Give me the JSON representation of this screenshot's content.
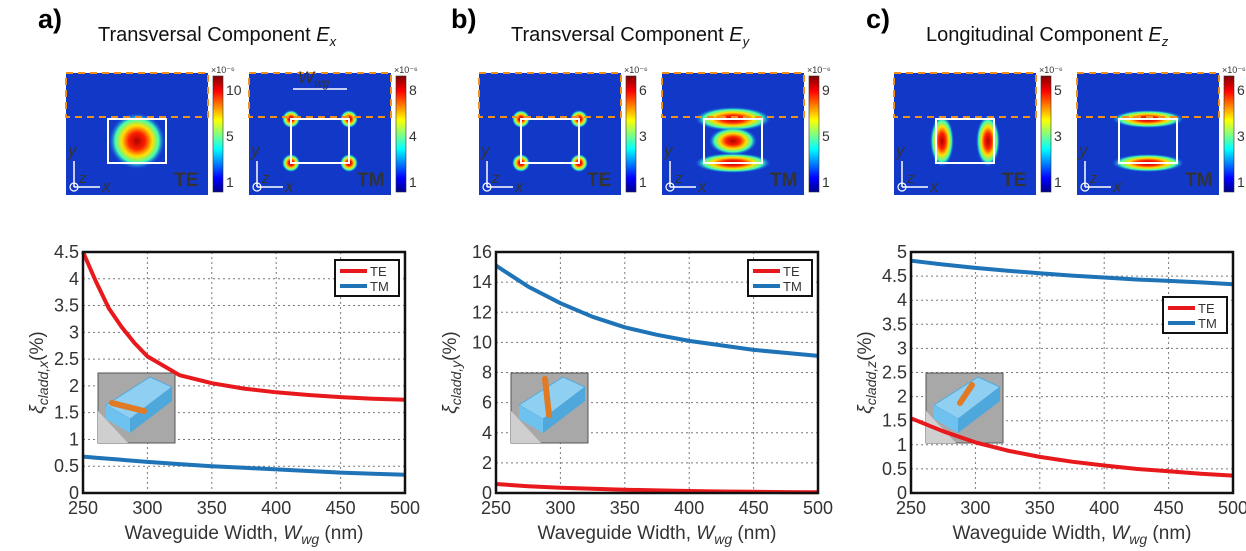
{
  "figure": {
    "panels": [
      {
        "letter": "a)",
        "title_prefix": "Transversal Component ",
        "title_var": "E",
        "title_sub": "x",
        "field_maps": [
          {
            "mode": "TE",
            "colorbar_exp": "×10⁻⁶",
            "ticks": [
              "10",
              "5",
              "1"
            ],
            "pattern": "center"
          },
          {
            "mode": "TM",
            "colorbar_exp": "×10⁻⁶",
            "ticks": [
              "8",
              "4",
              "1"
            ],
            "pattern": "corners",
            "width_label": "W",
            "width_sub": "wg"
          }
        ],
        "axis_labels": {
          "y": "y",
          "z": "z",
          "x": "x"
        }
      },
      {
        "letter": "b)",
        "title_prefix": "Transversal Component ",
        "title_var": "E",
        "title_sub": "y",
        "field_maps": [
          {
            "mode": "TE",
            "colorbar_exp": "×10⁻⁶",
            "ticks": [
              "6",
              "3",
              "1"
            ],
            "pattern": "corners"
          },
          {
            "mode": "TM",
            "colorbar_exp": "×10⁻⁶",
            "ticks": [
              "9",
              "5",
              "1"
            ],
            "pattern": "center-lobes"
          }
        ],
        "axis_labels": {
          "y": "y",
          "z": "z",
          "x": "x"
        }
      },
      {
        "letter": "c)",
        "title_prefix": "Longitudinal Component ",
        "title_var": "E",
        "title_sub": "z",
        "field_maps": [
          {
            "mode": "TE",
            "colorbar_exp": "×10⁻⁶",
            "ticks": [
              "5",
              "3",
              "1"
            ],
            "pattern": "side-lobes"
          },
          {
            "mode": "TM",
            "colorbar_exp": "×10⁻⁶",
            "ticks": [
              "6",
              "3",
              "1"
            ],
            "pattern": "top-bottom-lobes"
          }
        ],
        "axis_labels": {
          "y": "y",
          "z": "z",
          "x": "x"
        }
      }
    ]
  },
  "chart_data": [
    {
      "type": "line",
      "xlabel": "Waveguide Width, W",
      "xlabel_sub": "wg",
      "xlabel_unit": " (nm)",
      "ylabel_sym": "ξ",
      "ylabel_sub": "cladd,x",
      "ylabel_unit": "(%)",
      "xlim": [
        250,
        500
      ],
      "ylim": [
        0,
        4.5
      ],
      "xticks": [
        250,
        300,
        350,
        400,
        450,
        500
      ],
      "yticks": [
        0,
        0.5,
        1,
        1.5,
        2,
        2.5,
        3,
        3.5,
        4,
        4.5
      ],
      "ytick_labels": [
        "0",
        "0.5",
        "1",
        "1.5",
        "2",
        "2.5",
        "3",
        "3.5",
        "4",
        "4.5"
      ],
      "grid": true,
      "legend_placement": "top-right",
      "x": [
        250,
        260,
        270,
        280,
        290,
        300,
        325,
        350,
        375,
        400,
        425,
        450,
        475,
        500
      ],
      "series": [
        {
          "name": "TE",
          "color": "#e8191c",
          "values": [
            4.5,
            3.95,
            3.45,
            3.1,
            2.8,
            2.55,
            2.2,
            2.05,
            1.95,
            1.88,
            1.83,
            1.79,
            1.76,
            1.74
          ]
        },
        {
          "name": "TM",
          "color": "#1f73b7",
          "values": [
            0.68,
            0.66,
            0.64,
            0.62,
            0.6,
            0.58,
            0.54,
            0.5,
            0.47,
            0.44,
            0.41,
            0.38,
            0.36,
            0.34
          ]
        }
      ],
      "inset": "rod-horizontal"
    },
    {
      "type": "line",
      "xlabel": "Waveguide Width, W",
      "xlabel_sub": "wg",
      "xlabel_unit": " (nm)",
      "ylabel_sym": "ξ",
      "ylabel_sub": "cladd,y",
      "ylabel_unit": "(%)",
      "xlim": [
        250,
        500
      ],
      "ylim": [
        0,
        16
      ],
      "xticks": [
        250,
        300,
        350,
        400,
        450,
        500
      ],
      "yticks": [
        0,
        2,
        4,
        6,
        8,
        10,
        12,
        14,
        16
      ],
      "ytick_labels": [
        "0",
        "2",
        "4",
        "6",
        "8",
        "10",
        "12",
        "14",
        "16"
      ],
      "grid": true,
      "legend_placement": "top-right",
      "x": [
        250,
        275,
        300,
        325,
        350,
        375,
        400,
        425,
        450,
        475,
        500
      ],
      "series": [
        {
          "name": "TE",
          "color": "#e8191c",
          "values": [
            0.6,
            0.45,
            0.35,
            0.28,
            0.22,
            0.17,
            0.13,
            0.1,
            0.08,
            0.06,
            0.05
          ]
        },
        {
          "name": "TM",
          "color": "#1f73b7",
          "values": [
            15.1,
            13.7,
            12.6,
            11.7,
            11.0,
            10.5,
            10.1,
            9.8,
            9.5,
            9.3,
            9.1
          ]
        }
      ],
      "inset": "rod-vertical"
    },
    {
      "type": "line",
      "xlabel": "Waveguide Width, W",
      "xlabel_sub": "wg",
      "xlabel_unit": " (nm)",
      "ylabel_sym": "ξ",
      "ylabel_sub": "cladd,z",
      "ylabel_unit": "(%)",
      "xlim": [
        250,
        500
      ],
      "ylim": [
        0,
        5
      ],
      "xticks": [
        250,
        300,
        350,
        400,
        450,
        500
      ],
      "yticks": [
        0,
        0.5,
        1,
        1.5,
        2,
        2.5,
        3,
        3.5,
        4,
        4.5,
        5
      ],
      "ytick_labels": [
        "0",
        "0.5",
        "1",
        "1.5",
        "2",
        "2.5",
        "3",
        "3.5",
        "4",
        "4.5",
        "5"
      ],
      "grid": true,
      "legend_placement": "right",
      "x": [
        250,
        275,
        300,
        325,
        350,
        375,
        400,
        425,
        450,
        475,
        500
      ],
      "series": [
        {
          "name": "TE",
          "color": "#e8191c",
          "values": [
            1.55,
            1.28,
            1.05,
            0.88,
            0.75,
            0.65,
            0.57,
            0.5,
            0.45,
            0.4,
            0.36
          ]
        },
        {
          "name": "TM",
          "color": "#1f73b7",
          "values": [
            4.82,
            4.74,
            4.67,
            4.61,
            4.56,
            4.51,
            4.47,
            4.43,
            4.4,
            4.37,
            4.33
          ]
        }
      ],
      "inset": "rod-diagonal"
    }
  ]
}
